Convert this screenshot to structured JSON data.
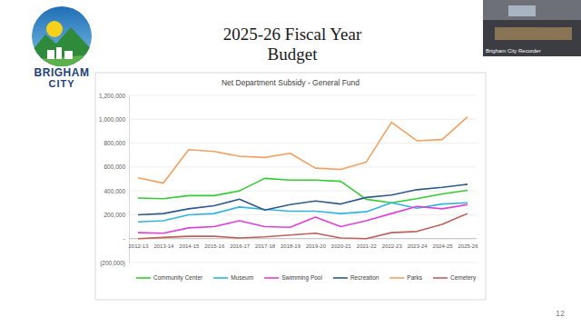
{
  "slide": {
    "title_lines": [
      "2025-26 Fiscal Year",
      "Budget"
    ],
    "page_number": 12,
    "logo_text": [
      "BRIGHAM",
      "CITY"
    ],
    "video_label": "Brigham City Recorder"
  },
  "chart_data": {
    "type": "line",
    "title": "Net Department Subsidy - General Fund",
    "categories": [
      "2012-13",
      "2013-14",
      "2014-15",
      "2015-16",
      "2016-17",
      "2017-18",
      "2018-19",
      "2019-20",
      "2020-21",
      "2021-22",
      "2022-23",
      "2023-24",
      "2024-25",
      "2025-26"
    ],
    "series": [
      {
        "name": "Community Center",
        "color": "#33cc33",
        "values": [
          340000,
          335000,
          360000,
          360000,
          400000,
          505000,
          490000,
          490000,
          480000,
          330000,
          300000,
          335000,
          375000,
          405000
        ]
      },
      {
        "name": "Museum",
        "color": "#2fb5e0",
        "values": [
          140000,
          150000,
          200000,
          210000,
          265000,
          245000,
          230000,
          230000,
          210000,
          225000,
          300000,
          255000,
          290000,
          300000
        ]
      },
      {
        "name": "Swimming Pool",
        "color": "#e040d8",
        "values": [
          50000,
          45000,
          90000,
          100000,
          150000,
          100000,
          95000,
          180000,
          100000,
          150000,
          210000,
          270000,
          250000,
          285000
        ]
      },
      {
        "name": "Recreation",
        "color": "#2e5a88",
        "values": [
          200000,
          210000,
          250000,
          275000,
          330000,
          240000,
          285000,
          315000,
          290000,
          345000,
          365000,
          410000,
          430000,
          455000
        ]
      },
      {
        "name": "Parks",
        "color": "#f4a060",
        "values": [
          510000,
          465000,
          745000,
          730000,
          690000,
          680000,
          715000,
          590000,
          580000,
          640000,
          975000,
          820000,
          830000,
          1020000
        ]
      },
      {
        "name": "Cemetery",
        "color": "#c0605a",
        "values": [
          0,
          10000,
          20000,
          20000,
          5000,
          15000,
          30000,
          45000,
          5000,
          0,
          50000,
          60000,
          120000,
          210000
        ]
      }
    ],
    "ylim": [
      -200000,
      1200000
    ],
    "yticks": [
      {
        "value": -200000,
        "label": "(200,000)"
      },
      {
        "value": 0,
        "label": "-"
      },
      {
        "value": 200000,
        "label": "200,000"
      },
      {
        "value": 400000,
        "label": "400,000"
      },
      {
        "value": 600000,
        "label": "600,000"
      },
      {
        "value": 800000,
        "label": "800,000"
      },
      {
        "value": 1000000,
        "label": "1,000,000"
      },
      {
        "value": 1200000,
        "label": "1,200,000"
      }
    ],
    "grid": true,
    "legend": "bottom"
  }
}
